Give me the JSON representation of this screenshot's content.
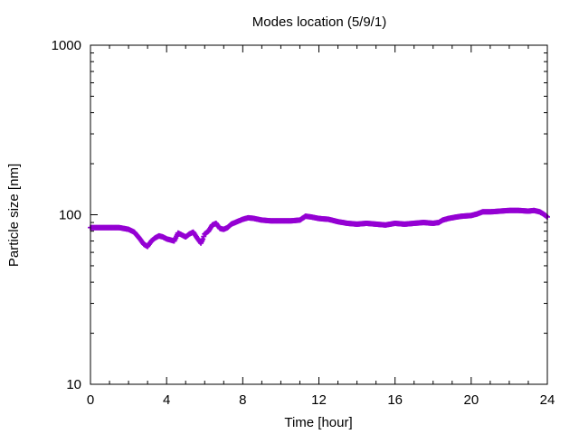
{
  "chart_data": {
    "type": "scatter",
    "title": "Modes location (5/9/1)",
    "xlabel": "Time [hour]",
    "ylabel": "Particle size [nm]",
    "xlim": [
      0,
      24
    ],
    "ylim": [
      10,
      1000
    ],
    "yscale": "log",
    "x_ticks": [
      0,
      4,
      8,
      12,
      16,
      20,
      24
    ],
    "x_tick_labels": [
      "0",
      "4",
      "8",
      "12",
      "16",
      "20",
      "24"
    ],
    "y_ticks": [
      10,
      100,
      1000
    ],
    "y_tick_labels": [
      "10",
      "100",
      "1000"
    ],
    "grid": false,
    "marker_color": "#9400d3",
    "series": [
      {
        "x": [
          0,
          0.5,
          1.0,
          1.5,
          2.0,
          2.3,
          2.6,
          2.8,
          3.0,
          3.2,
          3.4,
          3.6,
          3.8,
          4.0,
          4.2,
          4.4,
          4.6,
          4.8,
          5.0,
          5.2,
          5.4,
          5.6,
          5.8,
          5.9,
          6.0,
          6.2,
          6.4,
          6.6,
          6.8,
          7.0,
          7.2,
          7.4,
          7.6,
          7.8,
          8.0,
          8.3,
          8.6,
          9.0,
          9.5,
          10.0,
          10.5,
          11.0,
          11.3,
          11.6,
          12.0,
          12.5,
          13.0,
          13.5,
          14.0,
          14.5,
          15.0,
          15.5,
          16.0,
          16.5,
          17.0,
          17.5,
          18.0,
          18.3,
          18.5,
          18.8,
          19.0,
          19.5,
          20.0,
          20.3,
          20.6,
          21.0,
          21.5,
          22.0,
          22.5,
          23.0,
          23.3,
          23.6,
          23.8,
          24.0
        ],
        "y": [
          84,
          84,
          84,
          84,
          82,
          79,
          72,
          67,
          65,
          70,
          73,
          75,
          74,
          72,
          71,
          70,
          78,
          76,
          74,
          77,
          79,
          73,
          68,
          72,
          77,
          80,
          87,
          89,
          83,
          82,
          84,
          88,
          90,
          92,
          94,
          96,
          95,
          93,
          92,
          92,
          92,
          93,
          98,
          97,
          95,
          94,
          91,
          89,
          88,
          89,
          88,
          87,
          89,
          88,
          89,
          90,
          89,
          90,
          93,
          95,
          96,
          98,
          99,
          101,
          104,
          104,
          105,
          106,
          106,
          105,
          106,
          104,
          101,
          97
        ]
      }
    ]
  }
}
